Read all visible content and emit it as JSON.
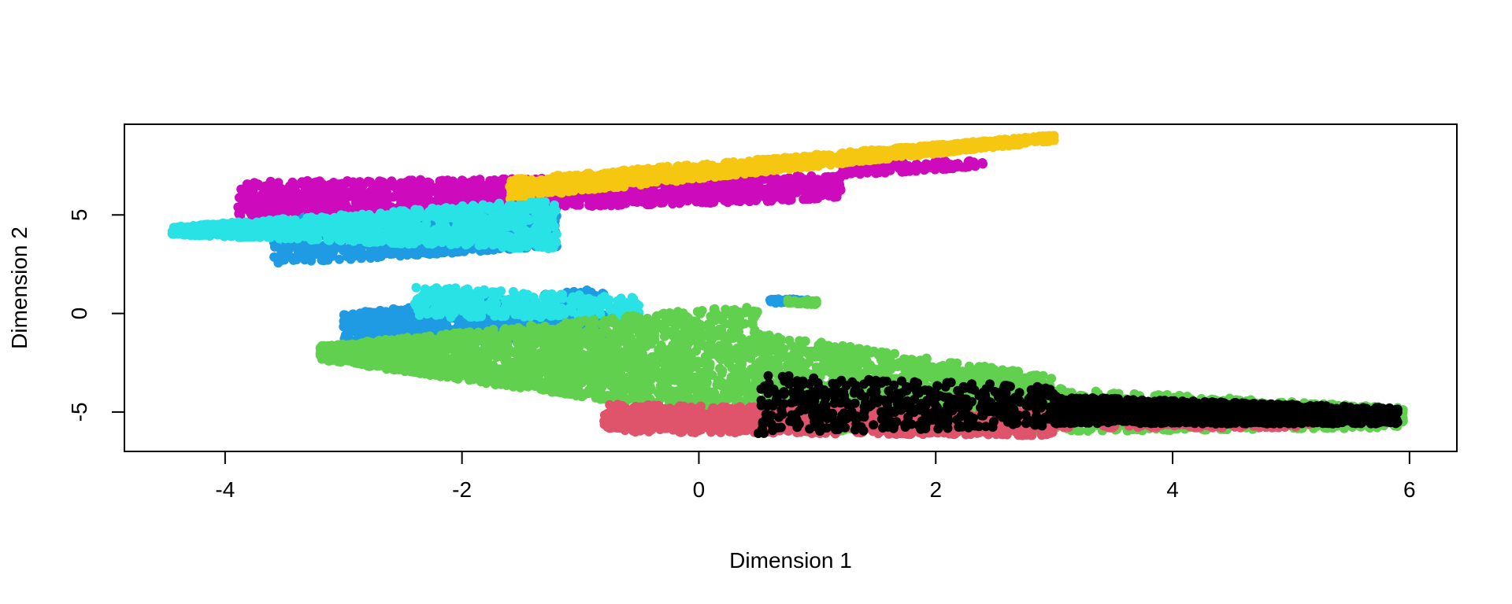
{
  "chart_data": {
    "type": "scatter",
    "title": "",
    "xlabel": "Dimension 1",
    "ylabel": "Dimension 2",
    "xlim": [
      -4.85,
      6.4
    ],
    "ylim": [
      -7.0,
      9.6
    ],
    "xticks": [
      -4,
      -2,
      0,
      2,
      4,
      6
    ],
    "yticks": [
      -5,
      0,
      5
    ],
    "legend": "none",
    "grid": false,
    "series": [
      {
        "color": "#1F9BE3",
        "clusters": [
          {
            "x0": -3.6,
            "x1": -1.2,
            "ymid0": 4.0,
            "ymid1": 4.2,
            "h0": 3.0,
            "h1": 1.6,
            "n": 900
          },
          {
            "x0": -3.0,
            "x1": -0.8,
            "ymid0": -0.8,
            "ymid1": 0.0,
            "h0": 1.6,
            "h1": 2.6,
            "n": 900
          },
          {
            "x0": 0.6,
            "x1": 0.95,
            "ymid0": 0.65,
            "ymid1": 0.6,
            "h0": 0.25,
            "h1": 0.2,
            "n": 40
          }
        ]
      },
      {
        "color": "#CD0BBC",
        "clusters": [
          {
            "x0": -3.9,
            "x1": 1.2,
            "ymid0": 5.8,
            "ymid1": 6.4,
            "h0": 1.8,
            "h1": 1.2,
            "n": 1400
          },
          {
            "x0": 1.2,
            "x1": 2.4,
            "ymid0": 7.3,
            "ymid1": 7.6,
            "h0": 0.6,
            "h1": 0.4,
            "n": 120
          }
        ]
      },
      {
        "color": "#F5C710",
        "clusters": [
          {
            "x0": -1.6,
            "x1": 3.0,
            "ymid0": 6.3,
            "ymid1": 8.9,
            "h0": 1.0,
            "h1": 0.3,
            "n": 1300
          }
        ]
      },
      {
        "color": "#28E2E5",
        "clusters": [
          {
            "x0": -4.45,
            "x1": -1.2,
            "ymid0": 4.2,
            "ymid1": 4.5,
            "h0": 0.4,
            "h1": 2.6,
            "n": 1100
          },
          {
            "x0": -2.4,
            "x1": -0.5,
            "ymid0": 0.6,
            "ymid1": 0.3,
            "h0": 1.6,
            "h1": 1.0,
            "n": 300
          }
        ]
      },
      {
        "color": "#61D04F",
        "clusters": [
          {
            "x0": -3.2,
            "x1": 0.5,
            "ymid0": -2.0,
            "ymid1": -2.5,
            "h0": 0.7,
            "h1": 6.0,
            "n": 2200
          },
          {
            "x0": 0.5,
            "x1": 3.0,
            "ymid0": -3.5,
            "ymid1": -4.6,
            "h0": 5.0,
            "h1": 2.8,
            "n": 1500
          },
          {
            "x0": 3.0,
            "x1": 5.95,
            "ymid0": -4.9,
            "ymid1": -5.3,
            "h0": 2.2,
            "h1": 1.0,
            "n": 700
          },
          {
            "x0": 0.75,
            "x1": 1.0,
            "ymid0": 0.6,
            "ymid1": 0.55,
            "h0": 0.2,
            "h1": 0.2,
            "n": 30
          }
        ]
      },
      {
        "color": "#DF536B",
        "clusters": [
          {
            "x0": -0.8,
            "x1": 3.0,
            "ymid0": -5.3,
            "ymid1": -5.6,
            "h0": 1.4,
            "h1": 1.2,
            "n": 1100
          },
          {
            "x0": 3.0,
            "x1": 5.2,
            "ymid0": -5.3,
            "ymid1": -5.4,
            "h0": 1.0,
            "h1": 0.8,
            "n": 300
          }
        ]
      },
      {
        "color": "#000000",
        "clusters": [
          {
            "x0": 0.5,
            "x1": 3.0,
            "ymid0": -4.6,
            "ymid1": -4.7,
            "h0": 3.0,
            "h1": 2.0,
            "n": 450
          },
          {
            "x0": 3.0,
            "x1": 5.9,
            "ymid0": -4.9,
            "ymid1": -5.2,
            "h0": 1.4,
            "h1": 0.8,
            "n": 1300
          }
        ]
      }
    ]
  }
}
